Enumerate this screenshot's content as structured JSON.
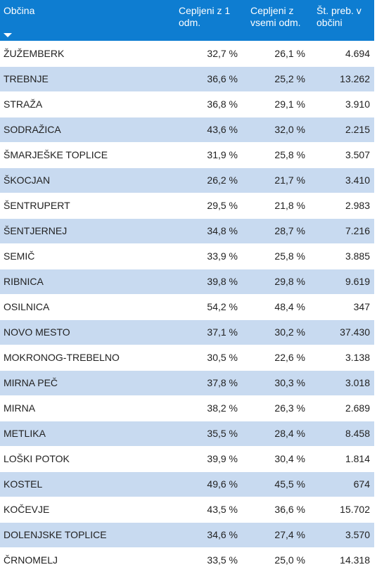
{
  "columns": [
    "Občina",
    "Cepljeni z 1 odm.",
    "Cepljeni z vsemi odm.",
    "Št. preb. v občini"
  ],
  "sort_icon": "sort-descending-icon",
  "colors": {
    "header": "#0e7dd1",
    "row_alt": "#c8daf0"
  },
  "chart_data": {
    "type": "table",
    "columns": [
      "Občina",
      "Cepljeni z 1 odm.",
      "Cepljeni z vsemi odm.",
      "Št. preb. v občini"
    ],
    "rows": [
      [
        "ŽUŽEMBERK",
        "32,7 %",
        "26,1 %",
        "4.694"
      ],
      [
        "TREBNJE",
        "36,6 %",
        "25,2 %",
        "13.262"
      ],
      [
        "STRAŽA",
        "36,8 %",
        "29,1 %",
        "3.910"
      ],
      [
        "SODRAŽICA",
        "43,6 %",
        "32,0 %",
        "2.215"
      ],
      [
        "ŠMARJEŠKE TOPLICE",
        "31,9 %",
        "25,8 %",
        "3.507"
      ],
      [
        "ŠKOCJAN",
        "26,2 %",
        "21,7 %",
        "3.410"
      ],
      [
        "ŠENTRUPERT",
        "29,5 %",
        "21,8 %",
        "2.983"
      ],
      [
        "ŠENTJERNEJ",
        "34,8 %",
        "28,7 %",
        "7.216"
      ],
      [
        "SEMIČ",
        "33,9 %",
        "25,8 %",
        "3.885"
      ],
      [
        "RIBNICA",
        "39,8 %",
        "29,8 %",
        "9.619"
      ],
      [
        "OSILNICA",
        "54,2 %",
        "48,4 %",
        "347"
      ],
      [
        "NOVO MESTO",
        "37,1 %",
        "30,2 %",
        "37.430"
      ],
      [
        "MOKRONOG-TREBELNO",
        "30,5 %",
        "22,6 %",
        "3.138"
      ],
      [
        "MIRNA PEČ",
        "37,8 %",
        "30,3 %",
        "3.018"
      ],
      [
        "MIRNA",
        "38,2 %",
        "26,3 %",
        "2.689"
      ],
      [
        "METLIKA",
        "35,5 %",
        "28,4 %",
        "8.458"
      ],
      [
        "LOŠKI POTOK",
        "39,9 %",
        "30,4 %",
        "1.814"
      ],
      [
        "KOSTEL",
        "49,6 %",
        "45,5 %",
        "674"
      ],
      [
        "KOČEVJE",
        "43,5 %",
        "36,6 %",
        "15.702"
      ],
      [
        "DOLENJSKE TOPLICE",
        "34,6 %",
        "27,4 %",
        "3.570"
      ],
      [
        "ČRNOMELJ",
        "33,5 %",
        "25,0 %",
        "14.318"
      ]
    ]
  }
}
